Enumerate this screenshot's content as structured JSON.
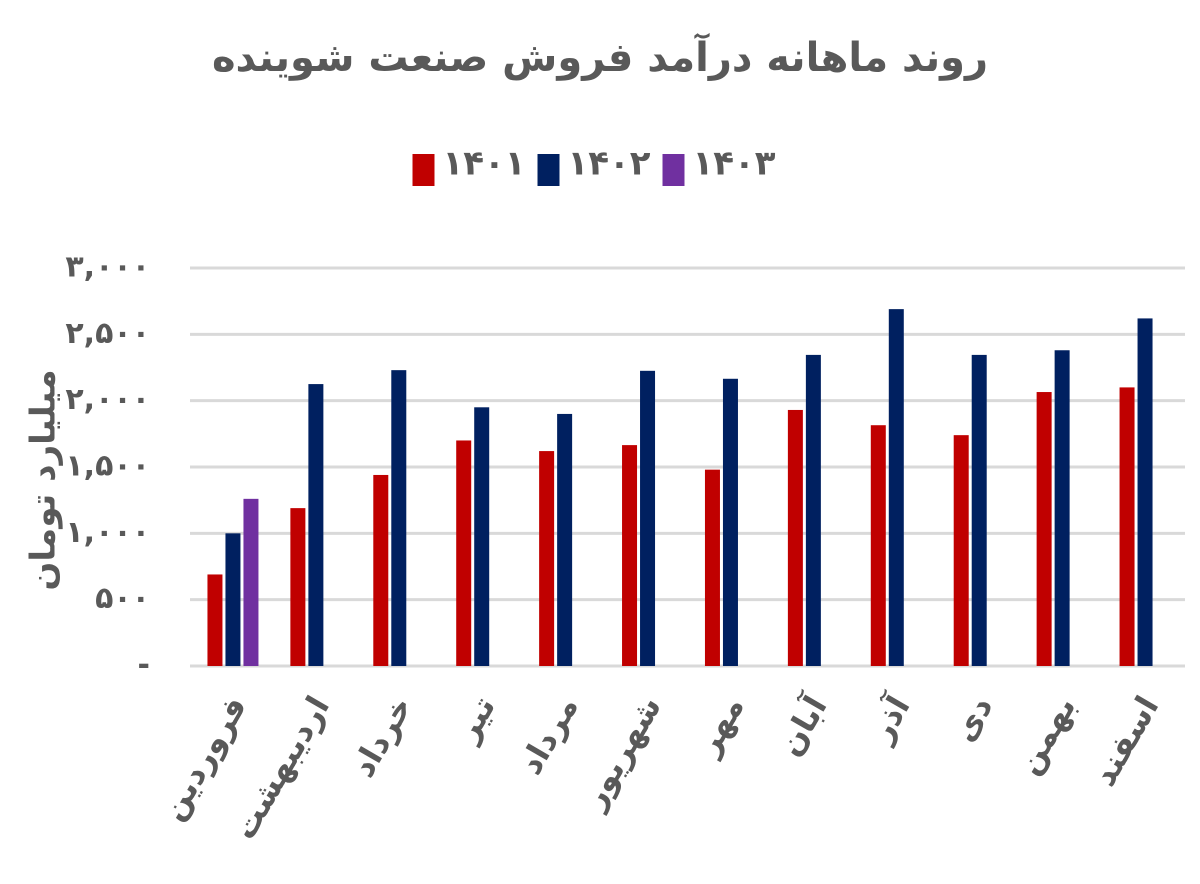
{
  "chart_data": {
    "type": "bar",
    "title": "روند ماهانه درآمد فروش صنعت شوینده",
    "y_label": "میلیارد تومان",
    "categories": [
      "فروردین",
      "اردیبهشت",
      "خرداد",
      "تیر",
      "مرداد",
      "شهریور",
      "مهر",
      "آبان",
      "آذر",
      "دی",
      "بهمن",
      "اسفند"
    ],
    "series": [
      {
        "name": "۱۴۰۱",
        "color": "#c00000",
        "values": [
          690,
          1190,
          1440,
          1700,
          1620,
          1665,
          1480,
          1930,
          1815,
          1740,
          2065,
          2100
        ]
      },
      {
        "name": "۱۴۰۲",
        "color": "#002060",
        "values": [
          1000,
          2125,
          2230,
          1950,
          1900,
          2225,
          2165,
          2345,
          2690,
          2345,
          2380,
          2620
        ]
      },
      {
        "name": "۱۴۰۳",
        "color": "#7030a0",
        "values": [
          1260,
          null,
          null,
          null,
          null,
          null,
          null,
          null,
          null,
          null,
          null,
          null
        ]
      }
    ],
    "ylim": [
      0,
      3000
    ],
    "yticks": [
      {
        "value": 0,
        "label": "-"
      },
      {
        "value": 500,
        "label": "۵۰۰"
      },
      {
        "value": 1000,
        "label": "۱,۰۰۰"
      },
      {
        "value": 1500,
        "label": "۱,۵۰۰"
      },
      {
        "value": 2000,
        "label": "۲,۰۰۰"
      },
      {
        "value": 2500,
        "label": "۲,۵۰۰"
      },
      {
        "value": 3000,
        "label": "۳,۰۰۰"
      }
    ],
    "grid": true,
    "legend": "top"
  }
}
